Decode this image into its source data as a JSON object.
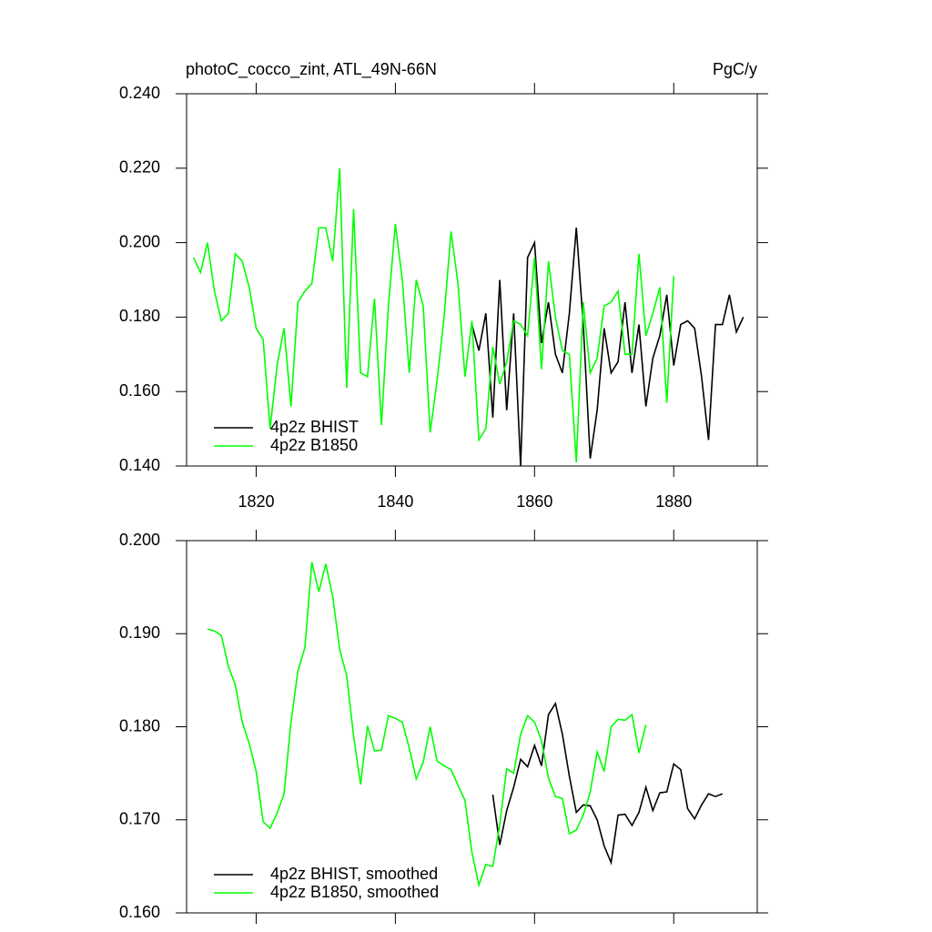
{
  "chart_data": [
    {
      "type": "line",
      "title": "photoC_cocco_zint, ATL_49N-66N",
      "units": "PgC/y",
      "xlim": [
        1810,
        1892
      ],
      "xticks": [
        1820,
        1840,
        1860,
        1880
      ],
      "ylim": [
        0.14,
        0.24
      ],
      "yticks": [
        {
          "value": 0.14,
          "label": "0.140"
        },
        {
          "value": 0.16,
          "label": "0.160"
        },
        {
          "value": 0.18,
          "label": "0.180"
        },
        {
          "value": 0.2,
          "label": "0.200"
        },
        {
          "value": 0.22,
          "label": "0.220"
        },
        {
          "value": 0.24,
          "label": "0.240"
        }
      ],
      "show_xtick_labels": true,
      "legend": "lower left",
      "series": [
        {
          "name": "4p2z BHIST",
          "color": "#000000",
          "x": [
            1851,
            1852,
            1853,
            1854,
            1855,
            1856,
            1857,
            1858,
            1859,
            1860,
            1861,
            1862,
            1863,
            1864,
            1865,
            1866,
            1867,
            1868,
            1869,
            1870,
            1871,
            1872,
            1873,
            1874,
            1875,
            1876,
            1877,
            1878,
            1879,
            1880,
            1881,
            1882,
            1883,
            1884,
            1885,
            1886,
            1887,
            1888,
            1889,
            1890
          ],
          "values": [
            0.178,
            0.171,
            0.181,
            0.153,
            0.19,
            0.155,
            0.181,
            0.14,
            0.196,
            0.2,
            0.173,
            0.184,
            0.17,
            0.165,
            0.181,
            0.204,
            0.178,
            0.142,
            0.155,
            0.177,
            0.165,
            0.168,
            0.184,
            0.165,
            0.178,
            0.156,
            0.169,
            0.175,
            0.186,
            0.167,
            0.178,
            0.179,
            0.177,
            0.164,
            0.147,
            0.178,
            0.178,
            0.186,
            0.176,
            0.18
          ]
        },
        {
          "name": "4p2z B1850",
          "color": "#00ff00",
          "x": [
            1811,
            1812,
            1813,
            1814,
            1815,
            1816,
            1817,
            1818,
            1819,
            1820,
            1821,
            1822,
            1823,
            1824,
            1825,
            1826,
            1827,
            1828,
            1829,
            1830,
            1831,
            1832,
            1833,
            1834,
            1835,
            1836,
            1837,
            1838,
            1839,
            1840,
            1841,
            1842,
            1843,
            1844,
            1845,
            1846,
            1847,
            1848,
            1849,
            1850,
            1851,
            1852,
            1853,
            1854,
            1855,
            1856,
            1857,
            1858,
            1859,
            1860,
            1861,
            1862,
            1863,
            1864,
            1865,
            1866,
            1867,
            1868,
            1869,
            1870,
            1871,
            1872,
            1873,
            1874,
            1875,
            1876,
            1877,
            1878,
            1879,
            1880
          ],
          "values": [
            0.196,
            0.192,
            0.2,
            0.187,
            0.179,
            0.181,
            0.197,
            0.195,
            0.188,
            0.177,
            0.174,
            0.15,
            0.167,
            0.177,
            0.156,
            0.184,
            0.187,
            0.189,
            0.204,
            0.204,
            0.195,
            0.22,
            0.161,
            0.209,
            0.165,
            0.164,
            0.185,
            0.151,
            0.183,
            0.205,
            0.19,
            0.165,
            0.19,
            0.183,
            0.149,
            0.163,
            0.18,
            0.203,
            0.189,
            0.164,
            0.179,
            0.147,
            0.15,
            0.172,
            0.162,
            0.168,
            0.179,
            0.178,
            0.175,
            0.196,
            0.166,
            0.195,
            0.18,
            0.171,
            0.17,
            0.141,
            0.184,
            0.165,
            0.169,
            0.183,
            0.184,
            0.187,
            0.17,
            0.17,
            0.197,
            0.175,
            0.181,
            0.188,
            0.157,
            0.191
          ]
        }
      ]
    },
    {
      "type": "line",
      "xlim": [
        1810,
        1892
      ],
      "xticks": [
        1820,
        1840,
        1860,
        1880
      ],
      "ylim": [
        0.16,
        0.2
      ],
      "yticks": [
        {
          "value": 0.16,
          "label": "0.160"
        },
        {
          "value": 0.17,
          "label": "0.170"
        },
        {
          "value": 0.18,
          "label": "0.180"
        },
        {
          "value": 0.19,
          "label": "0.190"
        },
        {
          "value": 0.2,
          "label": "0.200"
        }
      ],
      "show_xtick_labels": false,
      "legend": "lower left",
      "series": [
        {
          "name": "4p2z BHIST, smoothed",
          "color": "#000000",
          "x": [
            1854,
            1855,
            1856,
            1857,
            1858,
            1859,
            1860,
            1861,
            1862,
            1863,
            1864,
            1865,
            1866,
            1867,
            1868,
            1869,
            1870,
            1871,
            1872,
            1873,
            1874,
            1875,
            1876,
            1877,
            1878,
            1879,
            1880,
            1881,
            1882,
            1883,
            1884,
            1885,
            1886,
            1887
          ],
          "values": [
            0.1727,
            0.1673,
            0.171,
            0.1735,
            0.1765,
            0.1757,
            0.178,
            0.1758,
            0.1813,
            0.1825,
            0.1792,
            0.1747,
            0.1708,
            0.1716,
            0.1715,
            0.17,
            0.1672,
            0.1654,
            0.1705,
            0.1706,
            0.1694,
            0.1708,
            0.1735,
            0.171,
            0.1729,
            0.173,
            0.176,
            0.1754,
            0.1712,
            0.1701,
            0.1716,
            0.1728,
            0.1725,
            0.1728
          ]
        },
        {
          "name": "4p2z B1850, smoothed",
          "color": "#00ff00",
          "x": [
            1813,
            1814,
            1815,
            1816,
            1817,
            1818,
            1819,
            1820,
            1821,
            1822,
            1823,
            1824,
            1825,
            1826,
            1827,
            1828,
            1829,
            1830,
            1831,
            1832,
            1833,
            1834,
            1835,
            1836,
            1837,
            1838,
            1839,
            1840,
            1841,
            1842,
            1843,
            1844,
            1845,
            1846,
            1847,
            1848,
            1849,
            1850,
            1851,
            1852,
            1853,
            1854,
            1855,
            1856,
            1857,
            1858,
            1859,
            1860,
            1861,
            1862,
            1863,
            1864,
            1865,
            1866,
            1867,
            1868,
            1869,
            1870,
            1871,
            1872,
            1873,
            1874,
            1875,
            1876
          ],
          "values": [
            0.1905,
            0.1903,
            0.1898,
            0.1865,
            0.1845,
            0.1805,
            0.1782,
            0.1752,
            0.1698,
            0.1691,
            0.1707,
            0.1728,
            0.1805,
            0.186,
            0.1885,
            0.1977,
            0.1945,
            0.1975,
            0.194,
            0.1883,
            0.1855,
            0.179,
            0.1738,
            0.1801,
            0.1774,
            0.1775,
            0.1812,
            0.1809,
            0.1805,
            0.1777,
            0.1744,
            0.1762,
            0.18,
            0.1763,
            0.1758,
            0.1754,
            0.1737,
            0.1721,
            0.1665,
            0.163,
            0.1652,
            0.165,
            0.1695,
            0.1755,
            0.175,
            0.1792,
            0.1812,
            0.1805,
            0.1785,
            0.1745,
            0.1725,
            0.1723,
            0.1685,
            0.1689,
            0.1705,
            0.173,
            0.1773,
            0.1752,
            0.18,
            0.1808,
            0.1807,
            0.1813,
            0.1772,
            0.1802
          ]
        }
      ]
    }
  ]
}
